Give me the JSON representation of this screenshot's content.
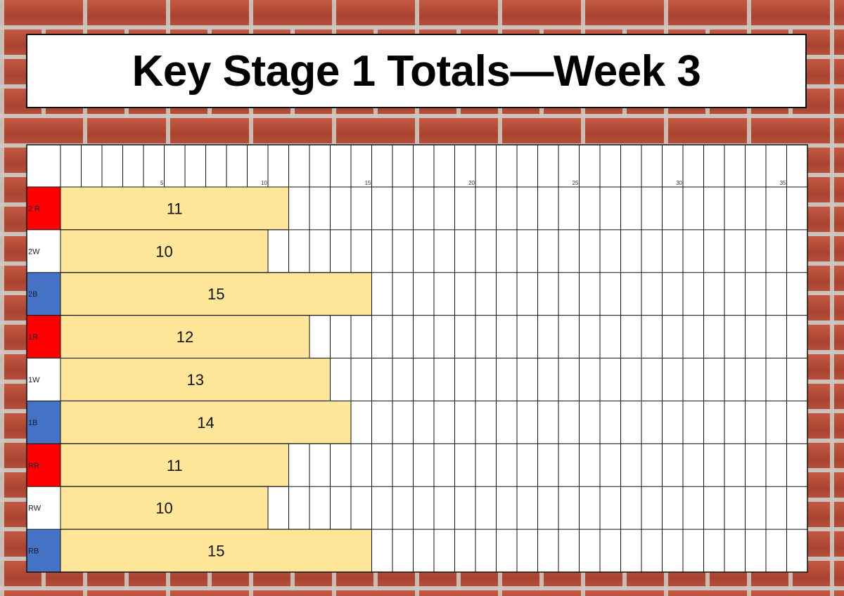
{
  "title": "Key Stage 1 Totals—Week 3",
  "chart_data": {
    "type": "bar",
    "orientation": "horizontal",
    "title": "Key Stage 1 Totals—Week 3",
    "categories": [
      "2 R",
      "2W",
      "2B",
      "1R",
      "1W",
      "1B",
      "RR",
      "RW",
      "RB"
    ],
    "values": [
      11,
      10,
      15,
      12,
      13,
      14,
      11,
      10,
      15
    ],
    "category_colors": [
      "#ff0000",
      "#ffffff",
      "#4472c4",
      "#ff0000",
      "#ffffff",
      "#4472c4",
      "#ff0000",
      "#ffffff",
      "#4472c4"
    ],
    "bar_color": "#ffe699",
    "xlim": [
      0,
      36
    ],
    "x_ticks": [
      5,
      10,
      15,
      20,
      25,
      30,
      35
    ],
    "grid": true,
    "legend": "none"
  }
}
